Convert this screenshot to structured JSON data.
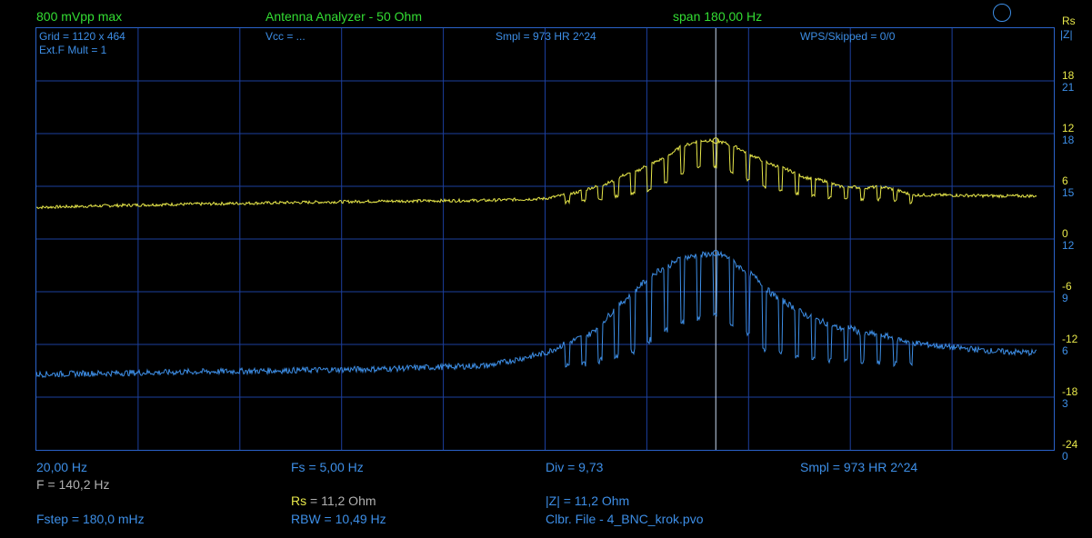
{
  "header": {
    "amplitude": "800 mVpp max",
    "mode": "Antenna Analyzer - 50 Ohm",
    "span": "span 180,00 Hz"
  },
  "right_axis": {
    "title_rs": "Rs",
    "title_z": "|Z|",
    "rs_ticks": [
      "18",
      "12",
      "6",
      "0",
      "-6",
      "-12",
      "-18",
      "-24"
    ],
    "z_ticks": [
      "21",
      "18",
      "15",
      "12",
      "9",
      "6",
      "3",
      "0"
    ]
  },
  "plot_info": {
    "grid": "Grid = 1120 x 464",
    "ext": "Ext.F Mult = 1",
    "vcc": "Vcc = ...",
    "smpl": "Smpl = 973 HR 2^24",
    "wps": "WPS/Skipped  = 0/0"
  },
  "footer": {
    "f_start": "20,00 Hz",
    "fs": "Fs = 5,00 Hz",
    "div": "Div = 9,73",
    "smpl": "Smpl = 973 HR  2^24",
    "f_marker": "F = 140,2 Hz",
    "rs_label": "Rs",
    "rs_value": " = 11,2 Ohm",
    "z_readout": "|Z| = 11,2 Ohm",
    "fstep": "Fstep = 180,0 mHz",
    "rbw": "RBW = 10,49 Hz",
    "clbr": "Clbr. File - 4_BNC_krok.pvo"
  },
  "colors": {
    "background": "#000000",
    "grid": "#1c3f9e",
    "frame": "#2a62c9",
    "rs_trace": "#e8e84a",
    "z_trace": "#3d8ee6",
    "header_text": "#33dd33",
    "marker": "#c8d8f0"
  },
  "chart_data": {
    "type": "line",
    "title": "",
    "xlabel": "",
    "ylabel": "",
    "xlim": [
      20.0,
      200.0
    ],
    "marker_x": 140.2,
    "grid": true,
    "series": [
      {
        "name": "Rs",
        "axis": "left",
        "ylim": [
          -24,
          24
        ],
        "x": [
          20,
          40,
          60,
          80,
          100,
          110,
          115,
          118,
          120,
          122,
          124,
          126,
          128,
          130,
          132,
          134,
          136,
          137,
          138,
          140.2,
          142,
          144,
          146,
          148,
          150,
          152,
          154,
          156,
          158,
          160,
          162,
          164,
          166,
          168,
          170,
          172,
          175,
          180,
          190,
          200
        ],
        "values": [
          3.6,
          3.9,
          4.1,
          4.3,
          4.4,
          4.6,
          5.2,
          5.8,
          6.1,
          6.6,
          7.3,
          7.6,
          8.4,
          8.9,
          9.6,
          10.5,
          10.9,
          11.2,
          11.2,
          11.2,
          10.9,
          10.4,
          9.7,
          9.1,
          8.5,
          8.1,
          7.6,
          7.0,
          6.8,
          6.5,
          6.0,
          6.0,
          5.8,
          5.9,
          5.9,
          5.6,
          5.0,
          5.0,
          4.9,
          4.9
        ]
      },
      {
        "name": "|Z|",
        "axis": "right",
        "ylim": [
          0,
          24
        ],
        "x": [
          20,
          40,
          60,
          80,
          100,
          110,
          114,
          118,
          120,
          122,
          124,
          126,
          128,
          130,
          132,
          134,
          136,
          137,
          138,
          140.2,
          142,
          144,
          146,
          148,
          150,
          152,
          154,
          156,
          158,
          160,
          162,
          164,
          166,
          168,
          170,
          175,
          180,
          190,
          200
        ],
        "values": [
          4.3,
          4.4,
          4.5,
          4.6,
          4.8,
          5.5,
          6.1,
          6.6,
          7.2,
          7.9,
          8.5,
          9.1,
          9.7,
          10.2,
          10.5,
          10.9,
          11.0,
          11.1,
          11.1,
          11.2,
          11.0,
          10.5,
          10.1,
          9.6,
          8.9,
          8.5,
          8.1,
          7.7,
          7.4,
          7.2,
          6.9,
          7.0,
          6.6,
          6.6,
          6.5,
          6.1,
          5.9,
          5.6,
          5.5
        ]
      }
    ]
  }
}
